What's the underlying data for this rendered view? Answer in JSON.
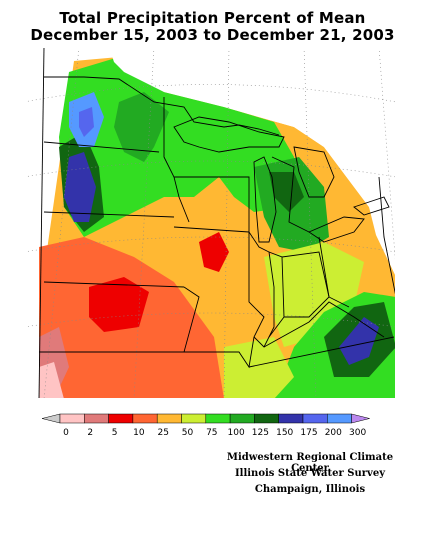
{
  "title": {
    "line1": "Total Precipitation Percent of Mean",
    "line2": "December 15, 2003 to December 21, 2003"
  },
  "legend": {
    "labels": [
      "0",
      "2",
      "5",
      "10",
      "25",
      "50",
      "75",
      "100",
      "125",
      "150",
      "175",
      "200",
      "300"
    ],
    "colors": [
      "#ffc4c4",
      "#e07a7a",
      "#ee0000",
      "#ff6633",
      "#ffb833",
      "#ccee33",
      "#33dd22",
      "#22aa22",
      "#116611",
      "#3333aa",
      "#5566ee",
      "#5599ff",
      "#77ccff",
      "#bb88ee"
    ]
  },
  "credits": {
    "line1": "Midwestern Regional Climate Center",
    "line2": "Illinois State Water Survey",
    "line3": "Champaign, Illinois"
  },
  "map_colors": {
    "ocean": "#ffffff",
    "boundary": "#000000",
    "grid": "#888888"
  }
}
